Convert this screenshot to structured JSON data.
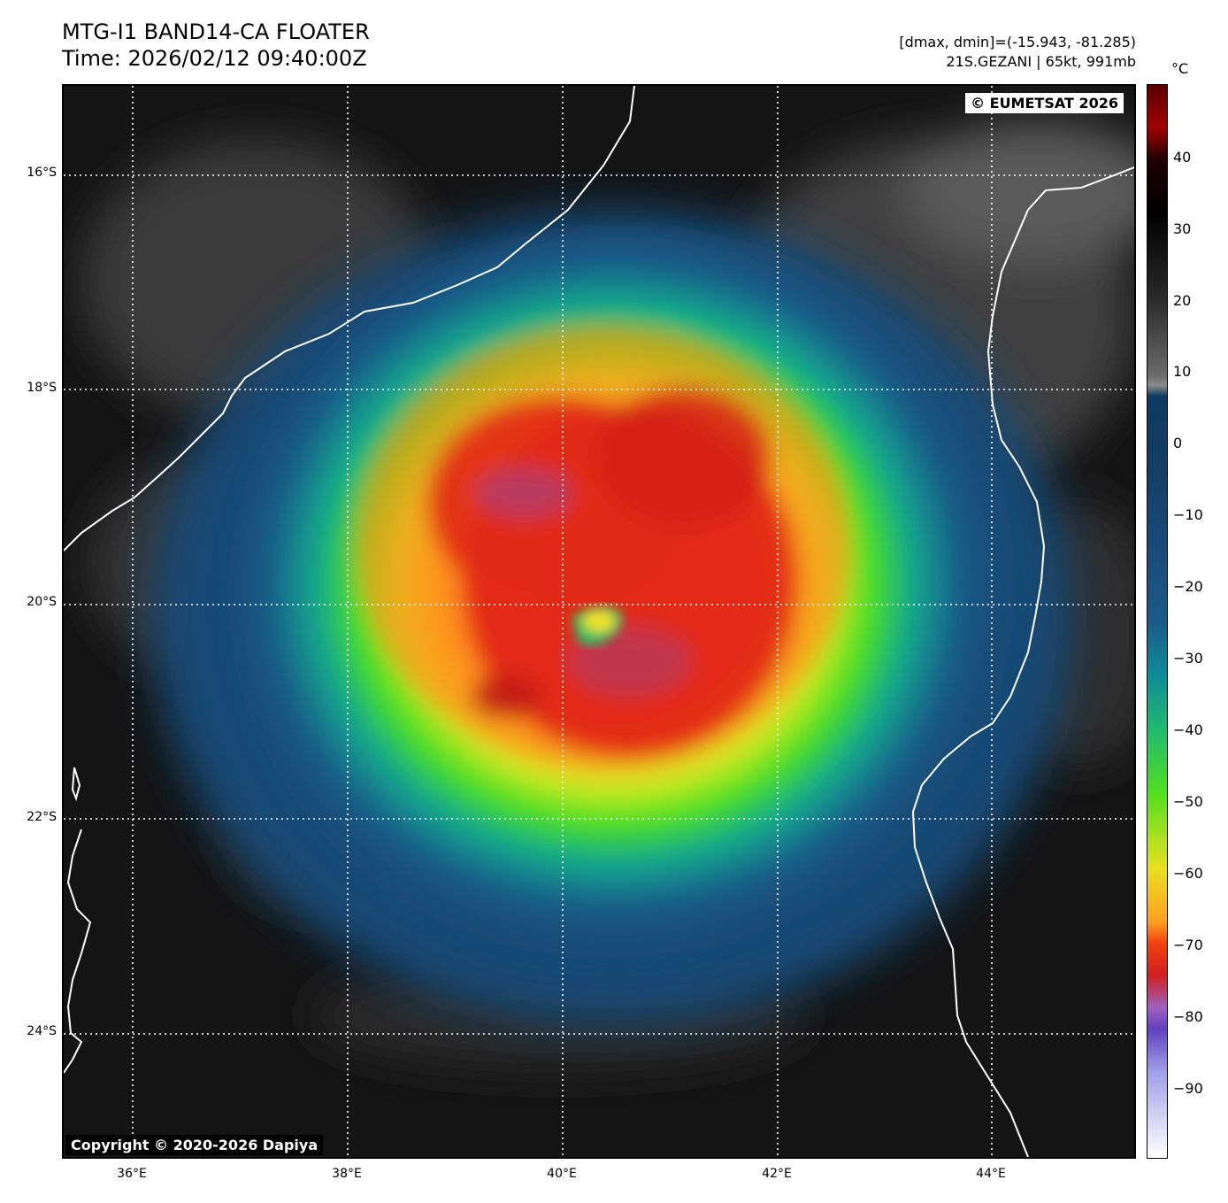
{
  "header": {
    "title_line1": "MTG-I1 BAND14-CA FLOATER",
    "title_line2": "Time: 2026/02/12 09:40:00Z",
    "info_line1": "[dmax, dmin]=(-15.943, -81.285)",
    "info_line2": "21S.GEZANI | 65kt, 991mb"
  },
  "map": {
    "copyright_top": "© EUMETSAT 2026",
    "copyright_bottom": "Copyright © 2020-2026 Dapiya",
    "lat_labels": [
      "16°S",
      "18°S",
      "20°S",
      "22°S",
      "24°S"
    ],
    "lon_labels": [
      "36°E",
      "38°E",
      "40°E",
      "42°E",
      "44°E"
    ]
  },
  "colorbar": {
    "unit": "°C",
    "ticks": [
      "40",
      "30",
      "20",
      "10",
      "0",
      "−10",
      "−20",
      "−30",
      "−40",
      "−50",
      "−60",
      "−70",
      "−80",
      "−90"
    ]
  }
}
